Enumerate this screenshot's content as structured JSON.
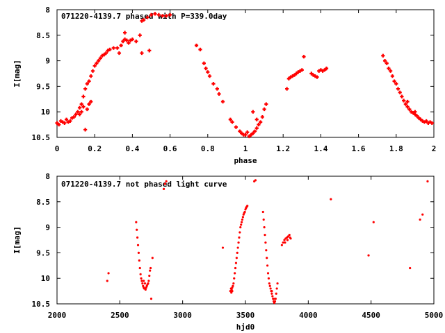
{
  "chart_data": [
    {
      "type": "scatter",
      "title": "071220-4139.7 phased with P=339.0day",
      "xlabel": "phase",
      "ylabel": "I[mag]",
      "xlim": [
        0,
        2
      ],
      "ylim": [
        10.5,
        8
      ],
      "y_inverted": true,
      "xticks": [
        "0",
        "0.2",
        "0.4",
        "0.6",
        "0.8",
        "1",
        "1.2",
        "1.4",
        "1.6",
        "1.8",
        "2"
      ],
      "yticks": [
        "8",
        "8.5",
        "9",
        "9.5",
        "10",
        "10.5"
      ],
      "marker": "cross",
      "color": "#ff0000",
      "points": [
        [
          0.0,
          10.22
        ],
        [
          0.01,
          10.25
        ],
        [
          0.02,
          10.18
        ],
        [
          0.03,
          10.2
        ],
        [
          0.04,
          10.22
        ],
        [
          0.05,
          10.15
        ],
        [
          0.06,
          10.2
        ],
        [
          0.07,
          10.18
        ],
        [
          0.08,
          10.12
        ],
        [
          0.09,
          10.1
        ],
        [
          0.1,
          10.05
        ],
        [
          0.11,
          10.0
        ],
        [
          0.12,
          9.92
        ],
        [
          0.13,
          9.85
        ],
        [
          0.14,
          9.7
        ],
        [
          0.15,
          9.55
        ],
        [
          0.16,
          9.45
        ],
        [
          0.17,
          9.4
        ],
        [
          0.18,
          9.3
        ],
        [
          0.19,
          9.2
        ],
        [
          0.2,
          9.1
        ],
        [
          0.21,
          9.05
        ],
        [
          0.22,
          9.0
        ],
        [
          0.23,
          8.95
        ],
        [
          0.24,
          8.9
        ],
        [
          0.25,
          8.88
        ],
        [
          0.26,
          8.85
        ],
        [
          0.27,
          8.8
        ],
        [
          0.28,
          8.78
        ],
        [
          0.3,
          8.75
        ],
        [
          0.32,
          8.75
        ],
        [
          0.34,
          8.7
        ],
        [
          0.35,
          8.62
        ],
        [
          0.36,
          8.58
        ],
        [
          0.37,
          8.6
        ],
        [
          0.38,
          8.65
        ],
        [
          0.39,
          8.6
        ],
        [
          0.4,
          8.58
        ],
        [
          0.42,
          8.62
        ],
        [
          0.44,
          8.5
        ],
        [
          0.45,
          8.22
        ],
        [
          0.46,
          8.2
        ],
        [
          0.48,
          8.15
        ],
        [
          0.5,
          8.1
        ],
        [
          0.52,
          8.08
        ],
        [
          0.54,
          8.1
        ],
        [
          0.56,
          8.12
        ],
        [
          0.58,
          8.12
        ],
        [
          0.6,
          8.1
        ],
        [
          0.15,
          10.35
        ],
        [
          0.12,
          10.05
        ],
        [
          0.13,
          10.0
        ],
        [
          0.16,
          9.95
        ],
        [
          0.17,
          9.85
        ],
        [
          0.18,
          9.8
        ],
        [
          0.14,
          9.9
        ],
        [
          0.33,
          8.85
        ],
        [
          0.36,
          8.45
        ],
        [
          0.45,
          8.85
        ],
        [
          0.49,
          8.8
        ],
        [
          0.74,
          8.7
        ],
        [
          0.76,
          8.78
        ],
        [
          0.78,
          9.05
        ],
        [
          0.79,
          9.15
        ],
        [
          0.8,
          9.22
        ],
        [
          0.81,
          9.3
        ],
        [
          0.83,
          9.45
        ],
        [
          0.85,
          9.55
        ],
        [
          0.86,
          9.65
        ],
        [
          0.88,
          9.8
        ],
        [
          0.92,
          10.15
        ],
        [
          0.93,
          10.2
        ],
        [
          0.95,
          10.3
        ],
        [
          0.97,
          10.38
        ],
        [
          0.98,
          10.42
        ],
        [
          1.0,
          10.45
        ],
        [
          1.02,
          10.48
        ],
        [
          1.03,
          10.45
        ],
        [
          1.04,
          10.42
        ],
        [
          1.05,
          10.38
        ],
        [
          1.06,
          10.32
        ],
        [
          1.07,
          10.25
        ],
        [
          1.08,
          10.2
        ],
        [
          1.09,
          10.1
        ],
        [
          1.1,
          9.95
        ],
        [
          1.11,
          9.85
        ],
        [
          1.04,
          10.0
        ],
        [
          1.01,
          10.4
        ],
        [
          0.99,
          10.45
        ],
        [
          1.06,
          10.15
        ],
        [
          1.22,
          9.55
        ],
        [
          1.23,
          9.35
        ],
        [
          1.24,
          9.32
        ],
        [
          1.25,
          9.3
        ],
        [
          1.26,
          9.28
        ],
        [
          1.27,
          9.25
        ],
        [
          1.28,
          9.22
        ],
        [
          1.29,
          9.2
        ],
        [
          1.3,
          9.18
        ],
        [
          1.31,
          8.92
        ],
        [
          1.35,
          9.25
        ],
        [
          1.36,
          9.28
        ],
        [
          1.37,
          9.3
        ],
        [
          1.38,
          9.32
        ],
        [
          1.39,
          9.2
        ],
        [
          1.4,
          9.18
        ],
        [
          1.41,
          9.2
        ],
        [
          1.42,
          9.18
        ],
        [
          1.43,
          9.15
        ],
        [
          1.73,
          8.9
        ],
        [
          1.74,
          9.0
        ],
        [
          1.75,
          9.05
        ],
        [
          1.76,
          9.15
        ],
        [
          1.77,
          9.2
        ],
        [
          1.78,
          9.3
        ],
        [
          1.79,
          9.4
        ],
        [
          1.8,
          9.45
        ],
        [
          1.81,
          9.55
        ],
        [
          1.82,
          9.62
        ],
        [
          1.83,
          9.7
        ],
        [
          1.84,
          9.78
        ],
        [
          1.85,
          9.85
        ],
        [
          1.86,
          9.9
        ],
        [
          1.87,
          9.95
        ],
        [
          1.88,
          10.0
        ],
        [
          1.89,
          10.02
        ],
        [
          1.9,
          10.05
        ],
        [
          1.91,
          10.08
        ],
        [
          1.92,
          10.12
        ],
        [
          1.93,
          10.15
        ],
        [
          1.94,
          10.18
        ],
        [
          1.95,
          10.2
        ],
        [
          1.96,
          10.18
        ],
        [
          1.97,
          10.22
        ],
        [
          1.98,
          10.2
        ],
        [
          1.99,
          10.22
        ],
        [
          1.86,
          9.8
        ],
        [
          1.9,
          10.0
        ]
      ]
    },
    {
      "type": "scatter",
      "title": "071220-4139.7 not phased light curve",
      "xlabel": "hjd0",
      "ylabel": "I[mag]",
      "xlim": [
        2000,
        5000
      ],
      "ylim": [
        10.5,
        8
      ],
      "y_inverted": true,
      "xticks": [
        "2000",
        "2500",
        "3000",
        "3500",
        "4000",
        "4500",
        "5000"
      ],
      "yticks": [
        "8",
        "8.5",
        "9",
        "9.5",
        "10",
        "10.5"
      ],
      "marker": "dot",
      "color": "#ff0000",
      "points": [
        [
          2400,
          10.05
        ],
        [
          2410,
          9.9
        ],
        [
          2630,
          8.9
        ],
        [
          2635,
          9.05
        ],
        [
          2640,
          9.2
        ],
        [
          2645,
          9.35
        ],
        [
          2650,
          9.5
        ],
        [
          2655,
          9.65
        ],
        [
          2660,
          9.8
        ],
        [
          2665,
          9.92
        ],
        [
          2670,
          10.0
        ],
        [
          2675,
          10.05
        ],
        [
          2680,
          10.1
        ],
        [
          2685,
          10.15
        ],
        [
          2690,
          10.18
        ],
        [
          2695,
          10.2
        ],
        [
          2700,
          10.2
        ],
        [
          2705,
          10.22
        ],
        [
          2710,
          10.18
        ],
        [
          2715,
          10.15
        ],
        [
          2720,
          10.12
        ],
        [
          2725,
          10.1
        ],
        [
          2730,
          10.05
        ],
        [
          2735,
          9.95
        ],
        [
          2740,
          9.85
        ],
        [
          2745,
          9.8
        ],
        [
          2750,
          10.4
        ],
        [
          2760,
          9.6
        ],
        [
          2700,
          10.1
        ],
        [
          2690,
          10.05
        ],
        [
          2850,
          8.25
        ],
        [
          2860,
          8.15
        ],
        [
          2870,
          8.1
        ],
        [
          3320,
          9.4
        ],
        [
          3380,
          10.25
        ],
        [
          3385,
          10.2
        ],
        [
          3390,
          10.22
        ],
        [
          3395,
          10.18
        ],
        [
          3400,
          10.15
        ],
        [
          3405,
          10.1
        ],
        [
          3410,
          10.0
        ],
        [
          3415,
          9.9
        ],
        [
          3420,
          9.8
        ],
        [
          3425,
          9.7
        ],
        [
          3430,
          9.6
        ],
        [
          3435,
          9.5
        ],
        [
          3440,
          9.4
        ],
        [
          3445,
          9.3
        ],
        [
          3450,
          9.2
        ],
        [
          3455,
          9.1
        ],
        [
          3460,
          9.0
        ],
        [
          3465,
          8.95
        ],
        [
          3470,
          8.9
        ],
        [
          3475,
          8.85
        ],
        [
          3480,
          8.8
        ],
        [
          3485,
          8.75
        ],
        [
          3490,
          8.72
        ],
        [
          3495,
          8.7
        ],
        [
          3500,
          8.65
        ],
        [
          3505,
          8.62
        ],
        [
          3510,
          8.6
        ],
        [
          3515,
          8.58
        ],
        [
          3388,
          10.28
        ],
        [
          3395,
          10.25
        ],
        [
          3570,
          8.1
        ],
        [
          3580,
          8.08
        ],
        [
          3640,
          8.7
        ],
        [
          3645,
          8.85
        ],
        [
          3650,
          9.0
        ],
        [
          3655,
          9.15
        ],
        [
          3660,
          9.3
        ],
        [
          3665,
          9.45
        ],
        [
          3670,
          9.6
        ],
        [
          3675,
          9.75
        ],
        [
          3680,
          9.9
        ],
        [
          3685,
          10.0
        ],
        [
          3690,
          10.1
        ],
        [
          3695,
          10.15
        ],
        [
          3700,
          10.2
        ],
        [
          3705,
          10.25
        ],
        [
          3710,
          10.3
        ],
        [
          3715,
          10.35
        ],
        [
          3720,
          10.4
        ],
        [
          3725,
          10.45
        ],
        [
          3730,
          10.48
        ],
        [
          3735,
          10.45
        ],
        [
          3740,
          10.4
        ],
        [
          3745,
          10.3
        ],
        [
          3750,
          10.2
        ],
        [
          3755,
          10.1
        ],
        [
          3710,
          10.25
        ],
        [
          3725,
          10.4
        ],
        [
          3790,
          9.35
        ],
        [
          3800,
          9.3
        ],
        [
          3810,
          9.25
        ],
        [
          3815,
          9.3
        ],
        [
          3820,
          9.22
        ],
        [
          3830,
          9.2
        ],
        [
          3835,
          9.25
        ],
        [
          3840,
          9.18
        ],
        [
          3850,
          9.15
        ],
        [
          3855,
          9.2
        ],
        [
          3860,
          9.22
        ],
        [
          4180,
          8.45
        ],
        [
          4480,
          9.55
        ],
        [
          4520,
          8.9
        ],
        [
          4810,
          9.8
        ],
        [
          4890,
          8.85
        ],
        [
          4910,
          8.75
        ],
        [
          4950,
          8.1
        ]
      ]
    }
  ]
}
